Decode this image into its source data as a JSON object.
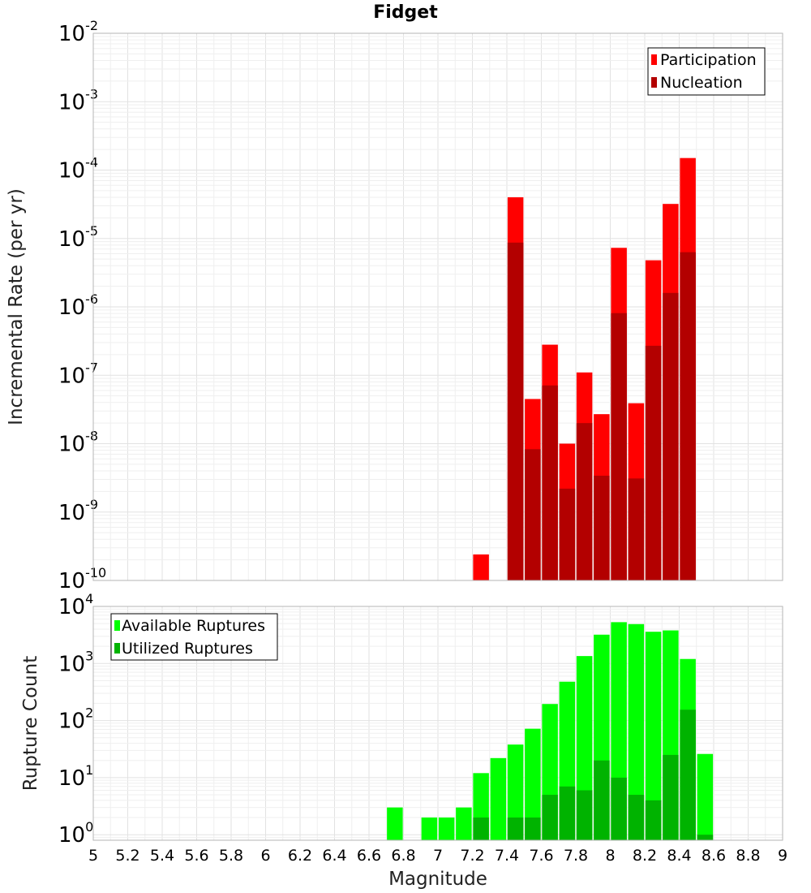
{
  "chart_data": [
    {
      "type": "bar",
      "title": "Fidget",
      "xlabel": "",
      "ylabel": "Incremental Rate (per yr)",
      "yscale": "log",
      "ylim": [
        1e-10,
        0.01
      ],
      "xlim": [
        5,
        9
      ],
      "grid": true,
      "legend_position": "top-right",
      "series": [
        {
          "name": "Participation",
          "color": "#ff0000",
          "x": [
            7.25,
            7.45,
            7.55,
            7.65,
            7.75,
            7.85,
            7.95,
            8.05,
            8.15,
            8.25,
            8.35,
            8.45
          ],
          "values": [
            2.4e-10,
            4e-05,
            4.5e-08,
            2.8e-07,
            1e-08,
            1.1e-07,
            2.7e-08,
            7.3e-06,
            3.9e-08,
            4.8e-06,
            3.2e-05,
            0.00015
          ]
        },
        {
          "name": "Nucleation",
          "color": "#b30000",
          "x": [
            7.45,
            7.55,
            7.65,
            7.75,
            7.85,
            7.95,
            8.05,
            8.15,
            8.25,
            8.35,
            8.45
          ],
          "values": [
            8.7e-06,
            8.3e-09,
            7.1e-08,
            2.2e-09,
            2e-08,
            3.4e-09,
            8.1e-07,
            3.1e-09,
            2.7e-07,
            1.6e-06,
            6.3e-06
          ]
        }
      ],
      "yticks": [
        {
          "base": "10",
          "exp": "-2"
        },
        {
          "base": "10",
          "exp": "-3"
        },
        {
          "base": "10",
          "exp": "-4"
        },
        {
          "base": "10",
          "exp": "-5"
        },
        {
          "base": "10",
          "exp": "-6"
        },
        {
          "base": "10",
          "exp": "-7"
        },
        {
          "base": "10",
          "exp": "-8"
        },
        {
          "base": "10",
          "exp": "-9"
        },
        {
          "base": "10",
          "exp": "-10"
        }
      ]
    },
    {
      "type": "bar",
      "title": "",
      "xlabel": "Magnitude",
      "ylabel": "Rupture Count",
      "yscale": "log",
      "ylim": [
        0.8,
        10000.0
      ],
      "xlim": [
        5,
        9
      ],
      "grid": true,
      "legend_position": "top-left",
      "series": [
        {
          "name": "Available Ruptures",
          "color": "#00ff00",
          "x": [
            6.75,
            6.95,
            7.05,
            7.15,
            7.25,
            7.35,
            7.45,
            7.55,
            7.65,
            7.75,
            7.85,
            7.95,
            8.05,
            8.15,
            8.25,
            8.35,
            8.45,
            8.55
          ],
          "values": [
            3,
            2,
            2,
            3,
            12,
            22,
            38,
            72,
            195,
            480,
            1350,
            3200,
            5300,
            4900,
            3600,
            3800,
            1200,
            26
          ]
        },
        {
          "name": "Utilized Ruptures",
          "color": "#00b300",
          "x": [
            7.25,
            7.45,
            7.55,
            7.65,
            7.75,
            7.85,
            7.95,
            8.05,
            8.15,
            8.25,
            8.35,
            8.45,
            8.55
          ],
          "values": [
            2,
            2,
            2,
            5,
            7,
            6,
            20,
            10,
            5,
            4,
            25,
            155,
            1
          ]
        }
      ],
      "yticks": [
        {
          "base": "10",
          "exp": "4"
        },
        {
          "base": "10",
          "exp": "3"
        },
        {
          "base": "10",
          "exp": "2"
        },
        {
          "base": "10",
          "exp": "1"
        },
        {
          "base": "10",
          "exp": "0"
        }
      ],
      "xticks": [
        "5",
        "5.2",
        "5.4",
        "5.6",
        "5.8",
        "6",
        "6.2",
        "6.4",
        "6.6",
        "6.8",
        "7",
        "7.2",
        "7.4",
        "7.6",
        "7.8",
        "8",
        "8.2",
        "8.4",
        "8.6",
        "8.8",
        "9"
      ]
    }
  ]
}
